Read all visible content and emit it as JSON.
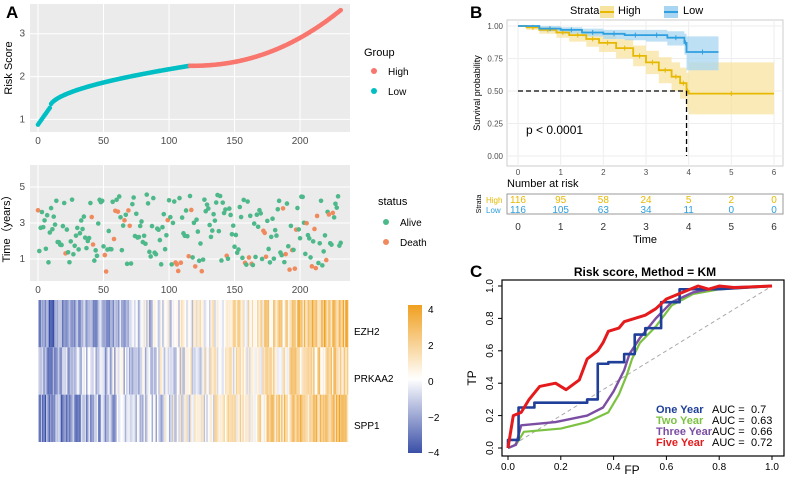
{
  "panels": {
    "a": {
      "label": "A"
    },
    "b": {
      "label": "B"
    },
    "c": {
      "label": "C"
    }
  },
  "colors": {
    "high": "#F8766D",
    "low": "#00BFC4",
    "alive": "#4DB88A",
    "death": "#F08A5D",
    "km_high": "#E7B800",
    "km_low": "#2E9FDF",
    "heat_low": "#3A4FA8",
    "heat_mid": "#FFFFFF",
    "heat_high": "#F0A020",
    "one_year": "#1F3F99",
    "two_year": "#7CC242",
    "three_year": "#7B4EA3",
    "five_year": "#E41A1C"
  },
  "chart_data": [
    {
      "id": "risk_score",
      "type": "scatter",
      "ylabel": "Risk Score",
      "x_ticks": [
        "0",
        "50",
        "100",
        "150",
        "200"
      ],
      "y_ticks": [
        "1",
        "2",
        "3"
      ],
      "xlim": [
        0,
        232
      ],
      "ylim": [
        0.8,
        3.6
      ],
      "n": 232,
      "cutoff_index": 116,
      "legend": {
        "title": "Group",
        "items": [
          "High",
          "Low"
        ]
      }
    },
    {
      "id": "survival_time",
      "type": "scatter",
      "ylabel": "Time（years）",
      "x_ticks": [
        "0",
        "50",
        "100",
        "150",
        "200"
      ],
      "y_ticks": [
        "1",
        "3",
        "5"
      ],
      "xlim": [
        0,
        232
      ],
      "ylim": [
        0,
        6
      ],
      "legend": {
        "title": "status",
        "items": [
          "Alive",
          "Death"
        ]
      }
    },
    {
      "id": "heatmap",
      "type": "heatmap",
      "rows": [
        "EZH2",
        "PRKAA2",
        "SPP1"
      ],
      "legend_ticks": [
        "4",
        "2",
        "0",
        "−2",
        "−4"
      ],
      "range": [
        -4,
        4
      ]
    },
    {
      "id": "km",
      "type": "line",
      "legend_title": "Strata",
      "legend_items": [
        "High",
        "Low"
      ],
      "ylabel": "Survival probability",
      "xlabel": "Time",
      "x_ticks": [
        "0",
        "1",
        "2",
        "3",
        "4",
        "5",
        "6"
      ],
      "y_ticks": [
        "0.00",
        "0.25",
        "0.50",
        "0.75",
        "1.00"
      ],
      "xlim": [
        0,
        6
      ],
      "ylim": [
        0,
        1
      ],
      "pvalue": "p < 0.0001",
      "median_time": 3.95,
      "series": [
        {
          "name": "High",
          "points": [
            [
              0,
              1
            ],
            [
              0.2,
              0.99
            ],
            [
              0.5,
              0.97
            ],
            [
              0.9,
              0.95
            ],
            [
              1.2,
              0.93
            ],
            [
              1.6,
              0.9
            ],
            [
              1.9,
              0.87
            ],
            [
              2.3,
              0.83
            ],
            [
              2.7,
              0.77
            ],
            [
              3.0,
              0.72
            ],
            [
              3.3,
              0.66
            ],
            [
              3.6,
              0.61
            ],
            [
              3.8,
              0.56
            ],
            [
              3.95,
              0.5
            ],
            [
              4.0,
              0.48
            ],
            [
              6,
              0.48
            ]
          ],
          "ci_upper": [
            1,
            1,
            0.99,
            0.98,
            0.97,
            0.95,
            0.93,
            0.9,
            0.85,
            0.81,
            0.76,
            0.72,
            0.68,
            0.64,
            0.72,
            0.72
          ],
          "ci_lower": [
            1,
            0.97,
            0.94,
            0.91,
            0.88,
            0.84,
            0.8,
            0.75,
            0.69,
            0.63,
            0.56,
            0.5,
            0.44,
            0.36,
            0.32,
            0.32
          ]
        },
        {
          "name": "Low",
          "points": [
            [
              0,
              1
            ],
            [
              0.5,
              0.98
            ],
            [
              1.0,
              0.97
            ],
            [
              1.5,
              0.95
            ],
            [
              2.0,
              0.94
            ],
            [
              2.5,
              0.93
            ],
            [
              3.0,
              0.93
            ],
            [
              3.5,
              0.91
            ],
            [
              3.9,
              0.87
            ],
            [
              3.95,
              0.8
            ],
            [
              4.7,
              0.8
            ]
          ],
          "ci_upper": [
            1,
            1,
            0.99,
            0.98,
            0.97,
            0.97,
            0.97,
            0.96,
            0.94,
            0.92,
            0.92
          ],
          "ci_lower": [
            1,
            0.96,
            0.94,
            0.92,
            0.9,
            0.89,
            0.88,
            0.85,
            0.78,
            0.66,
            0.66
          ]
        }
      ],
      "risk_table": {
        "title": "Number at risk",
        "strata_label": "Strata",
        "rows": [
          {
            "name": "High",
            "counts": [
              "116",
              "95",
              "58",
              "24",
              "5",
              "2",
              "0"
            ]
          },
          {
            "name": "Low",
            "counts": [
              "116",
              "105",
              "63",
              "34",
              "11",
              "0",
              "0"
            ]
          }
        ]
      }
    },
    {
      "id": "roc",
      "type": "line",
      "title": "Risk score, Method = KM",
      "xlabel": "FP",
      "ylabel": "TP",
      "x_ticks": [
        "0.0",
        "0.2",
        "0.4",
        "0.6",
        "0.8",
        "1.0"
      ],
      "y_ticks": [
        "0.0",
        "0.2",
        "0.4",
        "0.6",
        "0.8",
        "1.0"
      ],
      "xlim": [
        0,
        1
      ],
      "ylim": [
        0,
        1
      ],
      "series": [
        {
          "name": "One Year",
          "auc_label": "AUC =",
          "auc": "0.7",
          "points": [
            [
              0,
              0
            ],
            [
              0,
              0.05
            ],
            [
              0.04,
              0.05
            ],
            [
              0.04,
              0.25
            ],
            [
              0.1,
              0.25
            ],
            [
              0.1,
              0.28
            ],
            [
              0.3,
              0.28
            ],
            [
              0.3,
              0.3
            ],
            [
              0.34,
              0.3
            ],
            [
              0.34,
              0.52
            ],
            [
              0.38,
              0.52
            ],
            [
              0.38,
              0.53
            ],
            [
              0.44,
              0.53
            ],
            [
              0.44,
              0.58
            ],
            [
              0.48,
              0.58
            ],
            [
              0.48,
              0.7
            ],
            [
              0.52,
              0.7
            ],
            [
              0.52,
              0.74
            ],
            [
              0.58,
              0.74
            ],
            [
              0.58,
              0.9
            ],
            [
              0.65,
              0.9
            ],
            [
              0.65,
              0.98
            ],
            [
              0.8,
              0.98
            ],
            [
              1,
              1
            ]
          ]
        },
        {
          "name": "Two Year",
          "auc_label": "AUC =",
          "auc": "0.63",
          "points": [
            [
              0,
              0
            ],
            [
              0.03,
              0.02
            ],
            [
              0.06,
              0.1
            ],
            [
              0.2,
              0.12
            ],
            [
              0.3,
              0.16
            ],
            [
              0.38,
              0.22
            ],
            [
              0.42,
              0.33
            ],
            [
              0.45,
              0.45
            ],
            [
              0.47,
              0.55
            ],
            [
              0.5,
              0.65
            ],
            [
              0.56,
              0.75
            ],
            [
              0.62,
              0.88
            ],
            [
              0.7,
              0.95
            ],
            [
              0.8,
              0.98
            ],
            [
              1,
              1
            ]
          ]
        },
        {
          "name": "Three Year",
          "auc_label": "AUC =",
          "auc": "0.66",
          "points": [
            [
              0,
              0
            ],
            [
              0.03,
              0.02
            ],
            [
              0.05,
              0.14
            ],
            [
              0.18,
              0.16
            ],
            [
              0.3,
              0.2
            ],
            [
              0.36,
              0.25
            ],
            [
              0.4,
              0.35
            ],
            [
              0.44,
              0.48
            ],
            [
              0.46,
              0.58
            ],
            [
              0.5,
              0.68
            ],
            [
              0.56,
              0.8
            ],
            [
              0.62,
              0.9
            ],
            [
              0.7,
              0.96
            ],
            [
              0.8,
              0.99
            ],
            [
              1,
              1
            ]
          ]
        },
        {
          "name": "Five Year",
          "auc_label": "AUC =",
          "auc": "0.72",
          "points": [
            [
              0,
              0
            ],
            [
              0.02,
              0.2
            ],
            [
              0.05,
              0.22
            ],
            [
              0.08,
              0.3
            ],
            [
              0.12,
              0.38
            ],
            [
              0.18,
              0.4
            ],
            [
              0.22,
              0.36
            ],
            [
              0.27,
              0.42
            ],
            [
              0.3,
              0.55
            ],
            [
              0.34,
              0.6
            ],
            [
              0.36,
              0.65
            ],
            [
              0.38,
              0.72
            ],
            [
              0.42,
              0.74
            ],
            [
              0.44,
              0.78
            ],
            [
              0.48,
              0.8
            ],
            [
              0.52,
              0.82
            ],
            [
              0.56,
              0.86
            ],
            [
              0.6,
              0.92
            ],
            [
              0.66,
              0.96
            ],
            [
              0.72,
              1.0
            ],
            [
              0.76,
              0.98
            ],
            [
              0.8,
              1.0
            ],
            [
              0.86,
              0.99
            ],
            [
              1,
              1
            ]
          ]
        }
      ]
    }
  ]
}
